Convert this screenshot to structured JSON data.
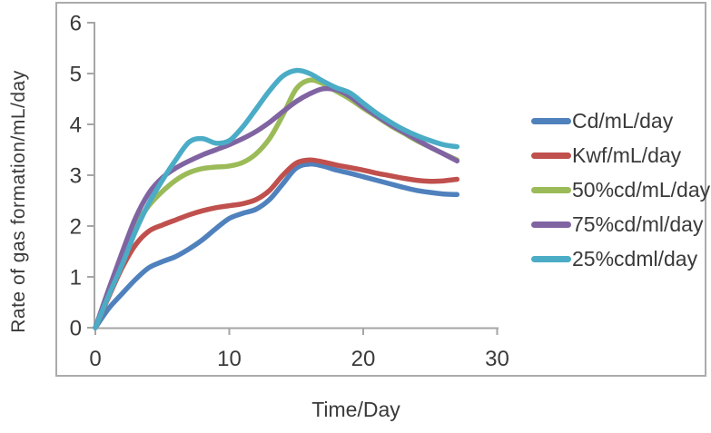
{
  "chart_data": {
    "type": "line",
    "title": "",
    "xlabel": "Time/Day",
    "ylabel": "Rate of gas formation/mL/day",
    "xlim": [
      0,
      30
    ],
    "ylim": [
      0,
      6
    ],
    "x_ticks": [
      0,
      10,
      20,
      30
    ],
    "y_ticks": [
      0,
      1,
      2,
      3,
      4,
      5,
      6
    ],
    "grid": false,
    "legend_position": "right",
    "axis_color": "#A6A6A6",
    "frame_color": "#ABABAB",
    "text_color": "#3A3A3A",
    "x": [
      0,
      1,
      2,
      3,
      4,
      5,
      6,
      7,
      8,
      9,
      10,
      11,
      12,
      13,
      14,
      15,
      16,
      17,
      18,
      19,
      20,
      21,
      22,
      23,
      24,
      25,
      26,
      27
    ],
    "series": [
      {
        "name": "Cd/mL/day",
        "color": "#4F81BD",
        "values": [
          0,
          0.38,
          0.67,
          0.95,
          1.18,
          1.3,
          1.4,
          1.55,
          1.73,
          1.95,
          2.15,
          2.25,
          2.33,
          2.52,
          2.83,
          3.14,
          3.22,
          3.18,
          3.1,
          3.04,
          2.97,
          2.9,
          2.83,
          2.76,
          2.7,
          2.66,
          2.63,
          2.62
        ]
      },
      {
        "name": "Kwf/mL/day",
        "color": "#C0504D",
        "values": [
          0,
          0.61,
          1.18,
          1.63,
          1.9,
          2.02,
          2.12,
          2.22,
          2.3,
          2.36,
          2.4,
          2.44,
          2.52,
          2.7,
          3.0,
          3.24,
          3.3,
          3.26,
          3.2,
          3.15,
          3.1,
          3.04,
          2.99,
          2.94,
          2.9,
          2.88,
          2.89,
          2.92
        ]
      },
      {
        "name": "50%cd/mL/day",
        "color": "#9BBB59",
        "values": [
          0,
          0.65,
          1.3,
          2.0,
          2.4,
          2.68,
          2.9,
          3.05,
          3.13,
          3.16,
          3.18,
          3.25,
          3.42,
          3.72,
          4.18,
          4.7,
          4.87,
          4.8,
          4.65,
          4.5,
          4.32,
          4.15,
          3.98,
          3.83,
          3.68,
          3.55,
          3.42,
          3.3
        ]
      },
      {
        "name": "75%cd/ml/day",
        "color": "#8064A2",
        "values": [
          0,
          0.76,
          1.48,
          2.16,
          2.65,
          2.95,
          3.14,
          3.28,
          3.4,
          3.5,
          3.6,
          3.72,
          3.86,
          4.04,
          4.25,
          4.45,
          4.6,
          4.7,
          4.68,
          4.55,
          4.35,
          4.17,
          4.0,
          3.85,
          3.7,
          3.55,
          3.42,
          3.28
        ]
      },
      {
        "name": "25%cdml/day",
        "color": "#4BACC6",
        "values": [
          0,
          0.64,
          1.24,
          1.9,
          2.45,
          2.9,
          3.3,
          3.65,
          3.72,
          3.63,
          3.68,
          3.95,
          4.3,
          4.66,
          4.95,
          5.06,
          5.0,
          4.85,
          4.72,
          4.62,
          4.42,
          4.22,
          4.05,
          3.9,
          3.78,
          3.68,
          3.6,
          3.56
        ]
      }
    ]
  }
}
